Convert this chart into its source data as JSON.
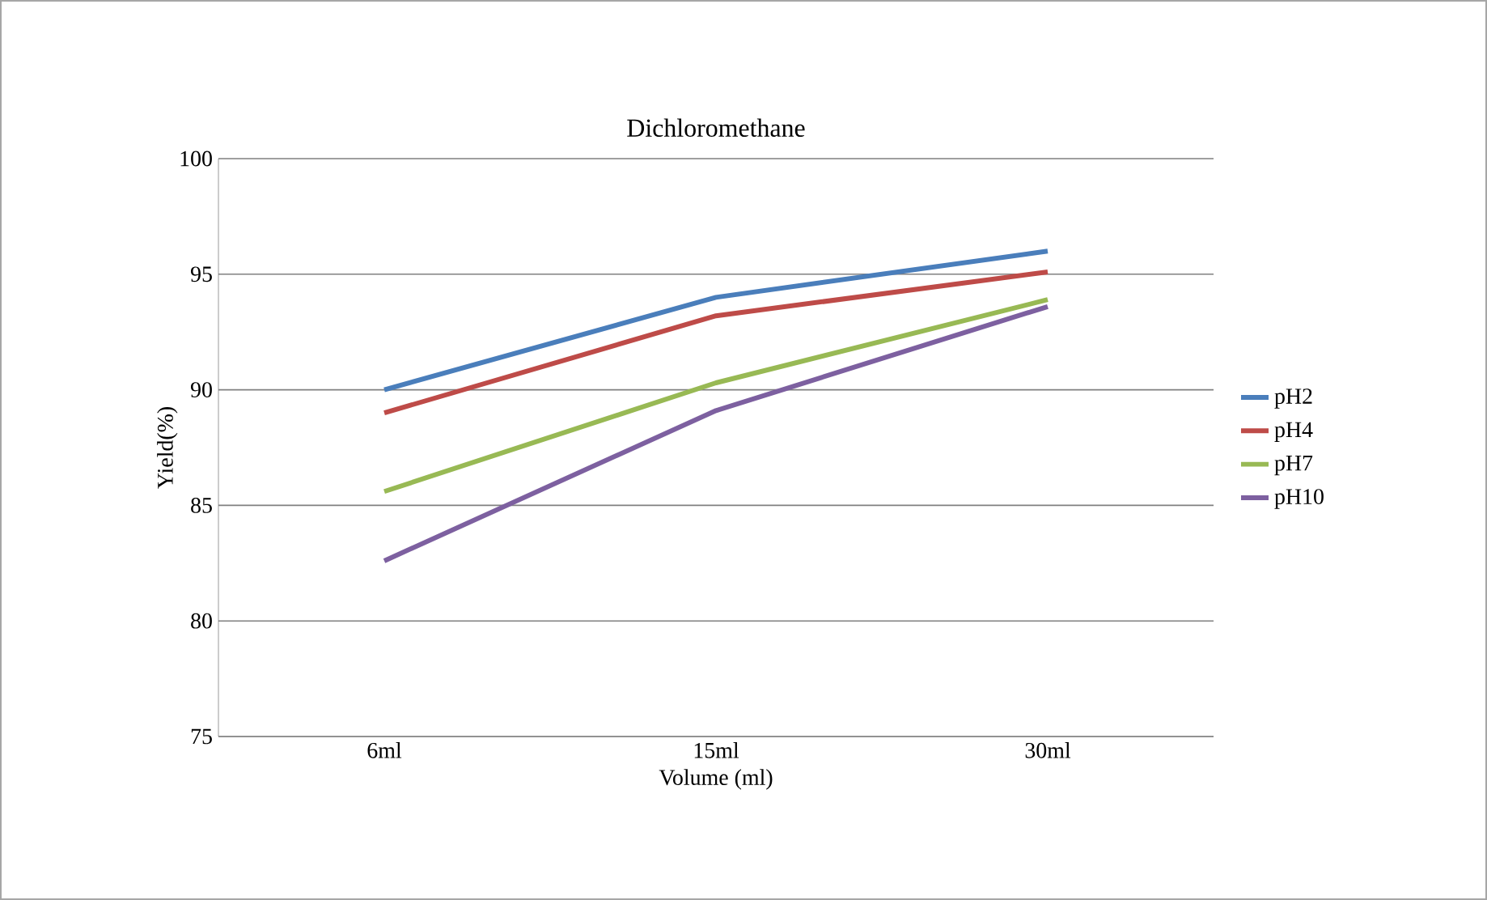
{
  "chart_data": {
    "type": "line",
    "title": "Dichloromethane",
    "xlabel": "Volume (ml)",
    "ylabel": "Yield(%)",
    "categories": [
      "6ml",
      "15ml",
      "30ml"
    ],
    "series": [
      {
        "name": "pH2",
        "color": "#4a7ebb",
        "values": [
          90.0,
          94.0,
          96.0
        ]
      },
      {
        "name": "pH4",
        "color": "#be4b48",
        "values": [
          89.0,
          93.2,
          95.1
        ]
      },
      {
        "name": "pH7",
        "color": "#98b954",
        "values": [
          85.6,
          90.3,
          93.9
        ]
      },
      {
        "name": "pH10",
        "color": "#7d60a0",
        "values": [
          82.6,
          89.1,
          93.6
        ]
      }
    ],
    "ylim": [
      75,
      100
    ],
    "yticks": [
      75,
      80,
      85,
      90,
      95,
      100
    ],
    "grid": "y",
    "legend": "right",
    "marker": "none",
    "line_style": "solid"
  }
}
